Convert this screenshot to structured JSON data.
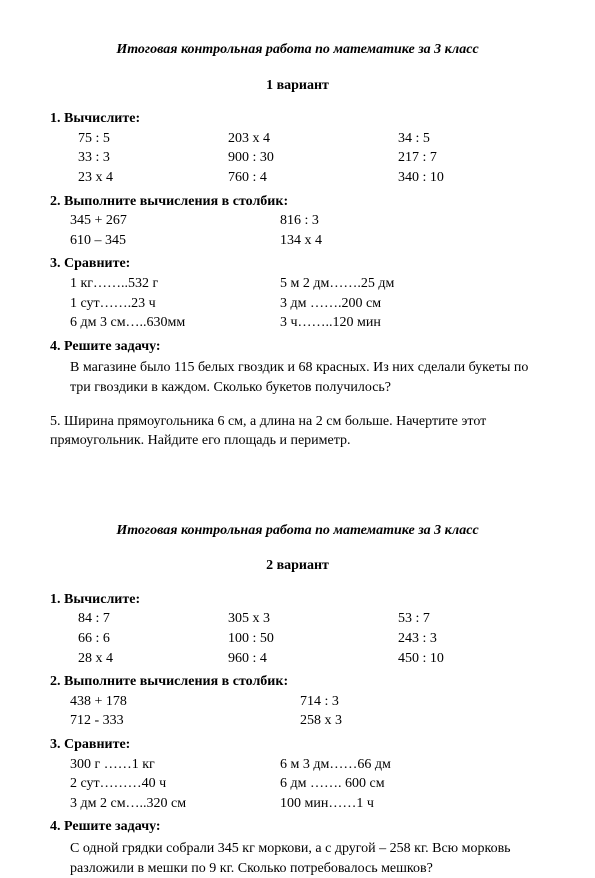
{
  "v1": {
    "title": "Итоговая контрольная работа по математике за 3 класс",
    "variant": "1 вариант",
    "t1": {
      "header": "1.  Вычислите:",
      "rows": [
        [
          "75 : 5",
          "203 х 4",
          "34 : 5"
        ],
        [
          "33 : 3",
          "900 : 30",
          "217 : 7"
        ],
        [
          "23 х 4",
          "760 : 4",
          "340 : 10"
        ]
      ]
    },
    "t2": {
      "header": "2.  Выполните вычисления в столбик:",
      "rows": [
        [
          "345 + 267",
          "816 : 3"
        ],
        [
          "610 – 345",
          "134 х 4"
        ]
      ]
    },
    "t3": {
      "header": "3.  Сравните:",
      "rows": [
        [
          "1 кг……..532 г",
          "5 м 2 дм…….25 дм"
        ],
        [
          "1 сут…….23 ч",
          "3 дм …….200 см"
        ],
        [
          "6 дм 3 см…..630мм",
          "3 ч……..120 мин"
        ]
      ]
    },
    "t4": {
      "header": "4.  Решите задачу:",
      "text": "В магазине было 115 белых гвоздик и 68 красных. Из них сделали букеты по три гвоздики в каждом. Сколько букетов получилось?"
    },
    "t5": {
      "text": "5.  Ширина прямоугольника 6 см, а длина на 2 см больше. Начертите этот прямоугольник. Найдите его площадь и периметр."
    }
  },
  "v2": {
    "title": "Итоговая контрольная работа по математике за 3 класс",
    "variant": "2 вариант",
    "t1": {
      "header": "1.  Вычислите:",
      "rows": [
        [
          "84 : 7",
          "305 х 3",
          "53 : 7"
        ],
        [
          "66 : 6",
          "100 : 50",
          "243 : 3"
        ],
        [
          "28 х 4",
          "960 : 4",
          "450 : 10"
        ]
      ]
    },
    "t2": {
      "header": "2.  Выполните вычисления в столбик:",
      "rows": [
        [
          "438 + 178",
          "714 : 3"
        ],
        [
          "712 - 333",
          "258  х  3"
        ]
      ]
    },
    "t3": {
      "header": "3.  Сравните:",
      "rows": [
        [
          "300 г ……1 кг",
          "6 м 3 дм……66 дм"
        ],
        [
          "2 сут………40 ч",
          "6 дм …….  600 см"
        ],
        [
          "3 дм 2 см…..320 см",
          "100 мин……1 ч"
        ]
      ]
    },
    "t4": {
      "header": "4.  Решите задачу:",
      "text": "С одной грядки собрали 345 кг моркови, а с другой – 258 кг.  Всю морковь разложили в мешки по 9 кг. Сколько потребовалось мешков?"
    }
  }
}
